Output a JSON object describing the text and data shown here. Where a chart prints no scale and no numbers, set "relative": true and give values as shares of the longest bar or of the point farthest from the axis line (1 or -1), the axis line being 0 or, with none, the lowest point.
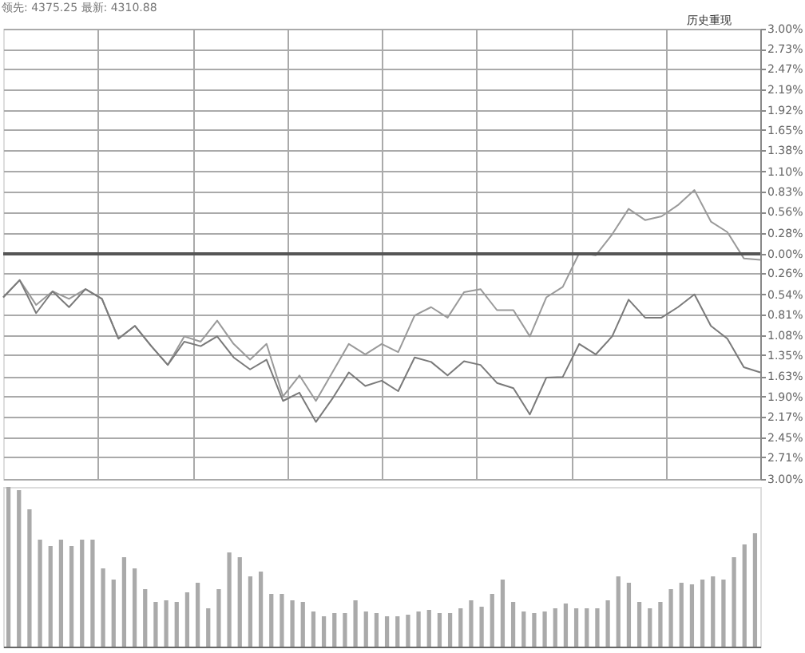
{
  "chart_data": [
    {
      "type": "line",
      "annotations": [
        "领先: 4375.25 最新: 4310.88",
        "历史重现"
      ],
      "categories": [
        null,
        null,
        null,
        null,
        null,
        null,
        null,
        null,
        null,
        null,
        null,
        null,
        null,
        null,
        null,
        null,
        null,
        null,
        null,
        null,
        null,
        null,
        null,
        null,
        null,
        null,
        null,
        null,
        null,
        null,
        null,
        null,
        null,
        null,
        null,
        null,
        null,
        null,
        null,
        null,
        null,
        null,
        null,
        null,
        null,
        null,
        null
      ],
      "series": [
        {
          "color": "#9a9a9a",
          "values": [
            -0.58,
            -0.35,
            -0.68,
            -0.5,
            -0.6,
            -0.47,
            -0.6,
            -1.13,
            -0.96,
            -1.23,
            -1.48,
            -1.1,
            -1.17,
            -0.89,
            -1.2,
            -1.41,
            -1.2,
            -1.9,
            -1.62,
            -1.96,
            -1.58,
            -1.2,
            -1.34,
            -1.2,
            -1.31,
            -0.82,
            -0.71,
            -0.85,
            -0.51,
            -0.47,
            -0.75,
            -0.75,
            -1.1,
            -0.58,
            -0.44,
            0.01,
            -0.02,
            0.26,
            0.6,
            0.45,
            0.5,
            0.65,
            0.85,
            0.43,
            0.29,
            -0.06,
            -0.08
          ]
        },
        {
          "color": "#7a7a7a",
          "values": [
            -0.58,
            -0.35,
            -0.79,
            -0.5,
            -0.71,
            -0.47,
            -0.6,
            -1.13,
            -0.96,
            -1.23,
            -1.48,
            -1.17,
            -1.23,
            -1.1,
            -1.38,
            -1.54,
            -1.41,
            -1.96,
            -1.85,
            -2.24,
            -1.93,
            -1.58,
            -1.76,
            -1.69,
            -1.83,
            -1.38,
            -1.44,
            -1.62,
            -1.43,
            -1.48,
            -1.72,
            -1.79,
            -2.14,
            -1.65,
            -1.64,
            -1.2,
            -1.34,
            -1.1,
            -0.61,
            -0.85,
            -0.85,
            -0.71,
            -0.54,
            -0.96,
            -1.13,
            -1.51,
            -1.58
          ]
        }
      ],
      "ylim": [
        -3,
        3
      ],
      "yticks": [
        {
          "value": 3,
          "label": "3.00%"
        },
        {
          "value": 2.73,
          "label": "2.73%"
        },
        {
          "value": 2.47,
          "label": "2.47%"
        },
        {
          "value": 2.19,
          "label": "2.19%"
        },
        {
          "value": 1.92,
          "label": "1.92%"
        },
        {
          "value": 1.65,
          "label": "1.65%"
        },
        {
          "value": 1.38,
          "label": "1.38%"
        },
        {
          "value": 1.1,
          "label": "1.10%"
        },
        {
          "value": 0.83,
          "label": "0.83%"
        },
        {
          "value": 0.56,
          "label": "0.56%"
        },
        {
          "value": 0.28,
          "label": "0.28%"
        },
        {
          "value": 0,
          "label": "0.00%"
        },
        {
          "value": -0.26,
          "label": "0.26%"
        },
        {
          "value": -0.54,
          "label": "0.54%"
        },
        {
          "value": -0.81,
          "label": "0.81%"
        },
        {
          "value": -1.08,
          "label": "1.08%"
        },
        {
          "value": -1.35,
          "label": "1.35%"
        },
        {
          "value": -1.63,
          "label": "1.63%"
        },
        {
          "value": -1.9,
          "label": "1.90%"
        },
        {
          "value": -2.17,
          "label": "2.17%"
        },
        {
          "value": -2.45,
          "label": "2.45%"
        },
        {
          "value": -2.71,
          "label": "2.71%"
        },
        {
          "value": -3,
          "label": "3.00%"
        }
      ],
      "tick_labels": "y",
      "grid": true,
      "ref_lines": [
        {
          "axis": "y",
          "value": 0,
          "color": "#555555"
        }
      ]
    },
    {
      "type": "bar",
      "relative": true,
      "color": "#aaaaaa",
      "categories": [
        null,
        null,
        null,
        null,
        null,
        null,
        null,
        null,
        null,
        null,
        null,
        null,
        null,
        null,
        null,
        null,
        null,
        null,
        null,
        null,
        null,
        null,
        null,
        null,
        null,
        null,
        null,
        null,
        null,
        null,
        null,
        null,
        null,
        null,
        null,
        null,
        null,
        null,
        null,
        null,
        null,
        null,
        null,
        null,
        null,
        null,
        null,
        null,
        null,
        null,
        null,
        null,
        null,
        null,
        null,
        null,
        null,
        null,
        null,
        null,
        null,
        null,
        null,
        null,
        null,
        null,
        null,
        null,
        null,
        null,
        null,
        null
      ],
      "values": [
        1,
        0.98,
        0.86,
        0.67,
        0.63,
        0.67,
        0.63,
        0.67,
        0.67,
        0.49,
        0.42,
        0.56,
        0.49,
        0.36,
        0.28,
        0.29,
        0.28,
        0.34,
        0.4,
        0.24,
        0.36,
        0.59,
        0.56,
        0.44,
        0.47,
        0.33,
        0.33,
        0.29,
        0.28,
        0.22,
        0.19,
        0.21,
        0.21,
        0.29,
        0.22,
        0.21,
        0.19,
        0.19,
        0.2,
        0.22,
        0.23,
        0.21,
        0.21,
        0.24,
        0.29,
        0.25,
        0.33,
        0.42,
        0.28,
        0.22,
        0.21,
        0.22,
        0.24,
        0.27,
        0.24,
        0.24,
        0.24,
        0.29,
        0.44,
        0.4,
        0.28,
        0.24,
        0.28,
        0.36,
        0.4,
        0.39,
        0.42,
        0.44,
        0.42,
        0.56,
        0.64,
        0.71
      ]
    }
  ]
}
